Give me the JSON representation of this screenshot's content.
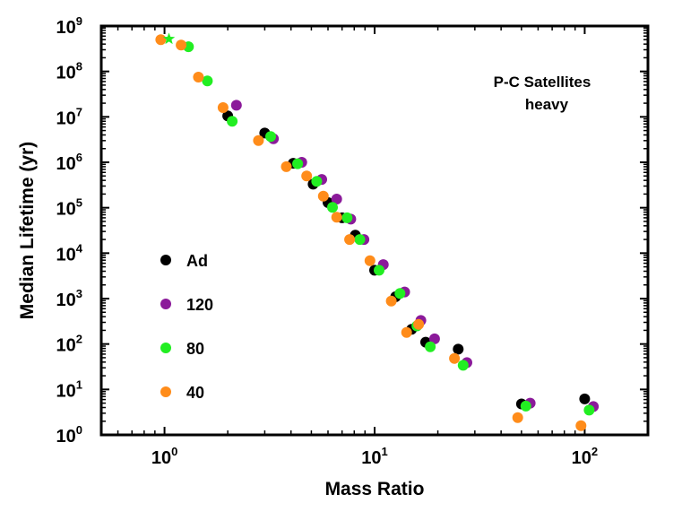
{
  "chart_data": {
    "type": "scatter",
    "title": "",
    "xlabel": "Mass Ratio",
    "ylabel": "Median Lifetime (yr)",
    "xscale": "log",
    "yscale": "log",
    "xlim": [
      0.5,
      200
    ],
    "ylim": [
      1,
      1000000000
    ],
    "x_ticks": [
      1,
      10,
      100
    ],
    "y_ticks": [
      1,
      10,
      100,
      1000,
      10000,
      100000,
      1000000,
      10000000,
      100000000,
      1000000000
    ],
    "tick_base": "10",
    "annotation": [
      "P-C Satellites",
      "heavy"
    ],
    "legend_position": "left-middle",
    "colors": {
      "Ad": "#000000",
      "120": "#8b1a9a",
      "80": "#22ee22",
      "40": "#ff8c1a"
    },
    "series": [
      {
        "name": "Ad",
        "color": "#000000",
        "points": [
          [
            2.0,
            10500000
          ],
          [
            3.0,
            4400000
          ],
          [
            4.1,
            950000
          ],
          [
            5.1,
            330000
          ],
          [
            6.0,
            130000
          ],
          [
            7.0,
            60000
          ],
          [
            8.1,
            25000
          ],
          [
            10.0,
            4200
          ],
          [
            12.6,
            1100
          ],
          [
            15.0,
            210
          ],
          [
            17.5,
            110
          ],
          [
            25.0,
            77
          ],
          [
            50.0,
            4.8
          ],
          [
            100.0,
            6.2
          ]
        ]
      },
      {
        "name": "120",
        "color": "#8b1a9a",
        "points": [
          [
            2.2,
            18000000
          ],
          [
            3.3,
            3300000
          ],
          [
            4.5,
            1000000
          ],
          [
            5.6,
            420000
          ],
          [
            6.6,
            155000
          ],
          [
            7.7,
            56000
          ],
          [
            8.9,
            20000
          ],
          [
            11.0,
            5600
          ],
          [
            13.9,
            1400
          ],
          [
            16.6,
            330
          ],
          [
            19.3,
            130
          ],
          [
            27.5,
            39
          ],
          [
            55.0,
            5.0
          ],
          [
            110.0,
            4.2
          ]
        ]
      },
      {
        "name": "80",
        "color": "#22ee22",
        "points": [
          [
            1.3,
            350000000
          ],
          [
            1.6,
            62000000
          ],
          [
            2.1,
            8000000
          ],
          [
            3.2,
            3700000
          ],
          [
            4.3,
            930000
          ],
          [
            5.3,
            380000
          ],
          [
            6.3,
            102000
          ],
          [
            7.4,
            60000
          ],
          [
            8.5,
            20000
          ],
          [
            10.5,
            4200
          ],
          [
            13.2,
            1300
          ],
          [
            15.9,
            250
          ],
          [
            18.4,
            87
          ],
          [
            26.4,
            34
          ],
          [
            52.5,
            4.3
          ],
          [
            105.0,
            3.5
          ]
        ]
      },
      {
        "name": "40",
        "color": "#ff8c1a",
        "points": [
          [
            0.96,
            500000000
          ],
          [
            1.2,
            380000000
          ],
          [
            1.45,
            75000000
          ],
          [
            1.9,
            16000000
          ],
          [
            2.8,
            3000000
          ],
          [
            3.8,
            800000
          ],
          [
            4.75,
            500000
          ],
          [
            5.7,
            180000
          ],
          [
            6.6,
            62000
          ],
          [
            7.6,
            20000
          ],
          [
            9.5,
            6800
          ],
          [
            12.0,
            880
          ],
          [
            14.2,
            180
          ],
          [
            16.2,
            270
          ],
          [
            24.0,
            48
          ],
          [
            48.0,
            2.4
          ],
          [
            96.0,
            1.6
          ]
        ]
      }
    ],
    "star_marker": {
      "label": "",
      "x": 1.05,
      "y": 520000000,
      "color": "#22ee22"
    }
  }
}
